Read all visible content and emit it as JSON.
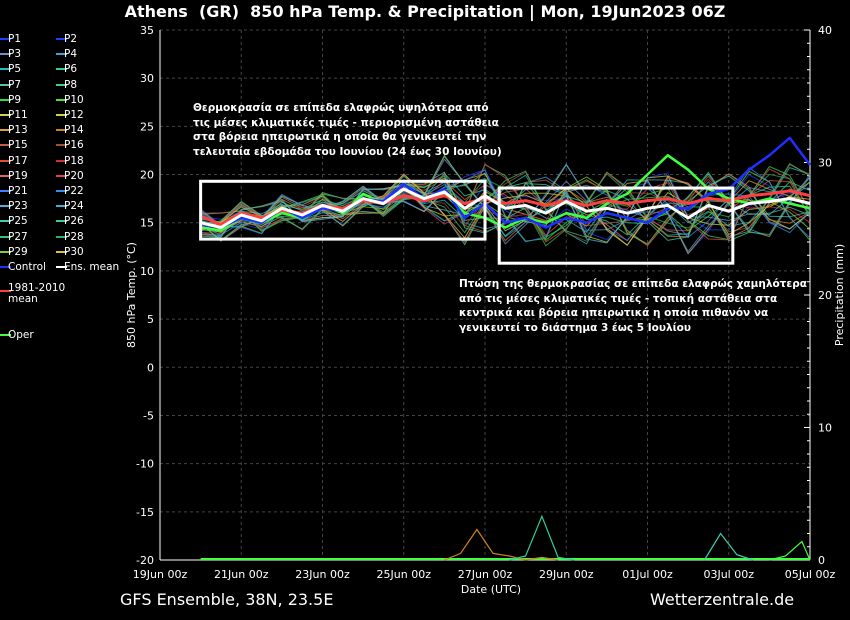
{
  "title": "Athens  (GR)  850 hPa Temp. & Precipitation | Mon, 19Jun2023 06Z",
  "footer": {
    "left": "GFS Ensemble, 38N, 23.5E",
    "right": "Wetterzentrale.de"
  },
  "legend": [
    {
      "label": "P1",
      "color": "#1f3fff"
    },
    {
      "label": "P2",
      "color": "#1f3fff"
    },
    {
      "label": "P3",
      "color": "#6f8fcf"
    },
    {
      "label": "P4",
      "color": "#3f9fdf"
    },
    {
      "label": "P5",
      "color": "#1fbfbf"
    },
    {
      "label": "P6",
      "color": "#2fcf8f"
    },
    {
      "label": "P7",
      "color": "#5fbfaf"
    },
    {
      "label": "P8",
      "color": "#3fcf7f"
    },
    {
      "label": "P9",
      "color": "#2fdf3f"
    },
    {
      "label": "P10",
      "color": "#4fdf2f"
    },
    {
      "label": "P11",
      "color": "#d0d060"
    },
    {
      "label": "P12",
      "color": "#cfcf40"
    },
    {
      "label": "P13",
      "color": "#e0a040"
    },
    {
      "label": "P14",
      "color": "#d08020"
    },
    {
      "label": "P15",
      "color": "#c06040"
    },
    {
      "label": "P16",
      "color": "#a05030"
    },
    {
      "label": "P17",
      "color": "#e05030"
    },
    {
      "label": "P18",
      "color": "#d03030"
    },
    {
      "label": "P19",
      "color": "#e06070"
    },
    {
      "label": "P20",
      "color": "#e04060"
    },
    {
      "label": "P21",
      "color": "#3f7fff"
    },
    {
      "label": "P22",
      "color": "#2f8fef"
    },
    {
      "label": "P23",
      "color": "#4fafdf"
    },
    {
      "label": "P24",
      "color": "#3fafcf"
    },
    {
      "label": "P25",
      "color": "#3fcfaf"
    },
    {
      "label": "P26",
      "color": "#2fcf9f"
    },
    {
      "label": "P27",
      "color": "#3fbf6f"
    },
    {
      "label": "P28",
      "color": "#2faf5f"
    },
    {
      "label": "P29",
      "color": "#7fcf3f"
    },
    {
      "label": "P30",
      "color": "#dfc040"
    },
    {
      "label": "Control",
      "color": "#1f2fff"
    },
    {
      "label": "Ens. mean",
      "color": "#ffffff"
    },
    {
      "label": "1981-2010\nmean",
      "color": "#ff3f3f"
    },
    {
      "label": "Oper",
      "color": "#3fff3f"
    }
  ],
  "annotations": [
    "Θερμοκρασία σε επίπεδα ελαφρώς υψηλότερα από\nτις μέσες κλιματικές τιμές - περιορισμένη αστάθεια\nστα βόρεια ηπειρωτικά η οποία θα γενικευτεί την\nτελευταία εβδομάδα του Ιουνίου (24 έως 30 Ιουνίου)",
    "Πτώση της θερμοκρασίας σε επίπεδα ελαφρώς χαμηλότερα\nαπό τις μέσες κλιματικές τιμές - τοπική αστάθεια στα\nκεντρικά και βόρεια ηπειρωτικά η οποία πιθανόν να\nγενικευτεί το διάστημα 3 έως 5 Ιουλίου"
  ],
  "chart_data": {
    "type": "line",
    "title": "Athens  (GR)  850 hPa Temp. & Precipitation | Mon, 19Jun2023 06Z",
    "xlabel": "Date (UTC)",
    "ylabel": "850 hPa Temp. (°C)",
    "y2label": "Precipitation (mm)",
    "x_ticks": [
      "19Jun 00z",
      "21Jun 00z",
      "23Jun 00z",
      "25Jun 00z",
      "27Jun 00z",
      "29Jun 00z",
      "01Jul 00z",
      "03Jul 00z",
      "05Jul 00z"
    ],
    "x_range_days": [
      0,
      16
    ],
    "forecast_start_day": 1.0,
    "ylim": [
      -20,
      35
    ],
    "y_ticks": [
      35,
      30,
      25,
      20,
      15,
      10,
      5,
      0,
      -5,
      -10,
      -15,
      -20
    ],
    "y2lim": [
      0,
      40
    ],
    "y2_ticks": [
      40,
      30,
      20,
      10,
      0
    ],
    "grid": true,
    "legend_position": "left",
    "series": [
      {
        "name": "Ens. mean",
        "color": "#ffffff",
        "x": [
          1.0,
          1.5,
          2.0,
          2.5,
          3.0,
          3.5,
          4.0,
          4.5,
          5.0,
          5.5,
          6.0,
          6.5,
          7.0,
          7.5,
          8.0,
          8.5,
          9.0,
          9.5,
          10.0,
          10.5,
          11.0,
          11.5,
          12.0,
          12.5,
          13.0,
          13.5,
          14.0,
          14.5,
          15.0,
          15.5,
          16.0
        ],
        "values": [
          15.0,
          14.5,
          15.8,
          15.2,
          16.5,
          15.8,
          16.8,
          16.2,
          17.5,
          17.0,
          18.5,
          17.5,
          18.2,
          16.5,
          17.8,
          16.5,
          16.8,
          16.0,
          17.2,
          16.2,
          16.5,
          16.0,
          16.5,
          16.8,
          15.5,
          16.8,
          16.2,
          17.0,
          17.2,
          17.5,
          17.0
        ]
      },
      {
        "name": "1981-2010\nmean",
        "color": "#ff3f3f",
        "x": [
          1.0,
          1.5,
          2.0,
          2.5,
          3.0,
          3.5,
          4.0,
          4.5,
          5.0,
          5.5,
          6.0,
          6.5,
          7.0,
          7.5,
          8.0,
          8.5,
          9.0,
          9.5,
          10.0,
          10.5,
          11.0,
          11.5,
          12.0,
          12.5,
          13.0,
          13.5,
          14.0,
          14.5,
          15.0,
          15.5,
          16.0
        ],
        "values": [
          15.7,
          14.8,
          16.0,
          15.5,
          16.3,
          16.0,
          16.8,
          16.5,
          17.3,
          17.0,
          17.8,
          17.3,
          17.8,
          17.0,
          17.5,
          17.0,
          17.3,
          16.8,
          17.3,
          16.8,
          17.3,
          17.0,
          17.3,
          17.5,
          17.0,
          17.5,
          17.3,
          17.8,
          18.0,
          18.3,
          17.8
        ]
      },
      {
        "name": "Oper",
        "color": "#3fff3f",
        "x": [
          1.0,
          1.5,
          2.0,
          2.5,
          3.0,
          3.5,
          4.0,
          4.5,
          5.0,
          5.5,
          6.0,
          6.5,
          7.0,
          7.5,
          8.0,
          8.5,
          9.0,
          9.5,
          10.0,
          10.5,
          11.0,
          11.5,
          12.0,
          12.5,
          13.0,
          13.5,
          14.0,
          14.5,
          15.0,
          15.5,
          16.0
        ],
        "values": [
          14.5,
          14.2,
          15.5,
          15.0,
          16.0,
          15.5,
          16.8,
          16.0,
          18.0,
          17.0,
          18.5,
          17.5,
          18.0,
          16.0,
          15.5,
          14.5,
          15.5,
          15.0,
          16.0,
          15.5,
          17.0,
          18.0,
          20.0,
          22.0,
          20.5,
          18.5,
          17.5,
          17.0,
          17.5,
          17.0,
          16.5
        ]
      },
      {
        "name": "Control",
        "color": "#1f2fff",
        "x": [
          1.0,
          1.5,
          2.0,
          2.5,
          3.0,
          3.5,
          4.0,
          4.5,
          5.0,
          5.5,
          6.0,
          6.5,
          7.0,
          7.5,
          8.0,
          8.5,
          9.0,
          9.5,
          10.0,
          10.5,
          11.0,
          11.5,
          12.0,
          12.5,
          13.0,
          13.5,
          14.0,
          14.5,
          15.0,
          15.5,
          16.0
        ],
        "values": [
          14.8,
          14.5,
          15.5,
          15.0,
          16.5,
          15.5,
          16.5,
          16.2,
          17.5,
          17.2,
          19.0,
          17.5,
          18.5,
          15.5,
          17.0,
          15.0,
          15.5,
          14.5,
          15.5,
          15.0,
          16.0,
          15.5,
          15.0,
          16.5,
          16.5,
          18.0,
          18.5,
          20.5,
          22.0,
          23.8,
          21.0
        ]
      }
    ],
    "precip_series": [
      {
        "name": "P14",
        "color": "#d08020",
        "x": [
          7.0,
          7.4,
          7.8,
          8.2,
          8.6,
          9.0,
          9.4,
          9.8
        ],
        "values": [
          0.0,
          0.5,
          2.3,
          0.5,
          0.3,
          0.0,
          0.2,
          0.0
        ]
      },
      {
        "name": "P26",
        "color": "#2fcf9f",
        "x": [
          8.6,
          9.0,
          9.4,
          9.8,
          10.2
        ],
        "values": [
          0.0,
          0.3,
          3.3,
          0.2,
          0.0
        ]
      },
      {
        "name": "P25",
        "color": "#3fcfaf",
        "x": [
          13.4,
          13.8,
          14.2,
          14.6
        ],
        "values": [
          0.0,
          2.0,
          0.4,
          0.0
        ]
      },
      {
        "name": "Oper",
        "color": "#3fff3f",
        "x": [
          15.0,
          15.4,
          15.8,
          16.0
        ],
        "values": [
          0.0,
          0.3,
          1.4,
          0.0
        ]
      }
    ]
  }
}
